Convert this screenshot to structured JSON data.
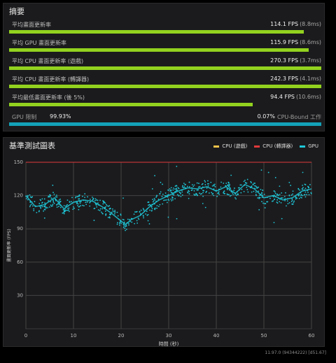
{
  "summary": {
    "title": "摘要",
    "rows": [
      {
        "label": "平均畫面更新率",
        "value": "114.1 FPS",
        "ms": "(8.8ms)",
        "fraction": 0.945
      },
      {
        "label": "平均 GPU 畫面更新率",
        "value": "115.9 FPS",
        "ms": "(8.6ms)",
        "fraction": 0.96
      },
      {
        "label": "平均 CPU 畫面更新率 (遊戲)",
        "value": "270.3 FPS",
        "ms": "(3.7ms)",
        "fraction": 1.0
      },
      {
        "label": "平均 CPU 畫面更新率 (轉譯器)",
        "value": "242.3 FPS",
        "ms": "(4.1ms)",
        "fraction": 1.0
      },
      {
        "label": "平均最低畫面更新率 (後 5%)",
        "value": "94.4 FPS",
        "ms": "(10.6ms)",
        "fraction": 0.78
      }
    ],
    "gpu_bound": {
      "label": "GPU 限制",
      "gpu_pct": "99.93%",
      "cpu_pct": "0.07%",
      "cpu_label": "CPU-Bound 工作",
      "fraction": 0.9993
    }
  },
  "bench": {
    "title": "基準測試圖表",
    "legend": [
      {
        "label": "CPU (遊戲)",
        "color": "#f0c24a"
      },
      {
        "label": "CPU (轉譯器)",
        "color": "#e0393b"
      },
      {
        "label": "GPU",
        "color": "#1fc7d8"
      }
    ]
  },
  "chart_data": {
    "type": "scatter",
    "xlabel": "時間 (秒)",
    "ylabel": "畫面更新率 (FPS)",
    "xlim": [
      0,
      60
    ],
    "ylim": [
      0,
      150
    ],
    "xticks": [
      "0",
      "10",
      "20",
      "30",
      "40",
      "50",
      "60"
    ],
    "yticks": [
      "30",
      "60",
      "90",
      "120",
      "150"
    ],
    "grid": true,
    "legend_position": "top-right",
    "series": [
      {
        "name": "GPU",
        "color": "#1fc7d8",
        "x": [
          0,
          2,
          4,
          6,
          8,
          10,
          12,
          14,
          16,
          18,
          20,
          21,
          22,
          24,
          26,
          28,
          30,
          32,
          34,
          36,
          38,
          40,
          42,
          44,
          46,
          48,
          50,
          52,
          54,
          56,
          58,
          60
        ],
        "y": [
          120,
          110,
          112,
          118,
          108,
          114,
          116,
          115,
          110,
          104,
          97,
          94,
          98,
          102,
          110,
          116,
          120,
          124,
          127,
          126,
          128,
          124,
          128,
          122,
          130,
          126,
          118,
          120,
          116,
          118,
          124,
          126
        ]
      },
      {
        "name": "CPU (轉譯器)",
        "color": "#e0393b",
        "x": [
          0,
          60
        ],
        "y": [
          150,
          150
        ]
      }
    ]
  },
  "version": "11.97.0 (94344222) [d51.67]"
}
